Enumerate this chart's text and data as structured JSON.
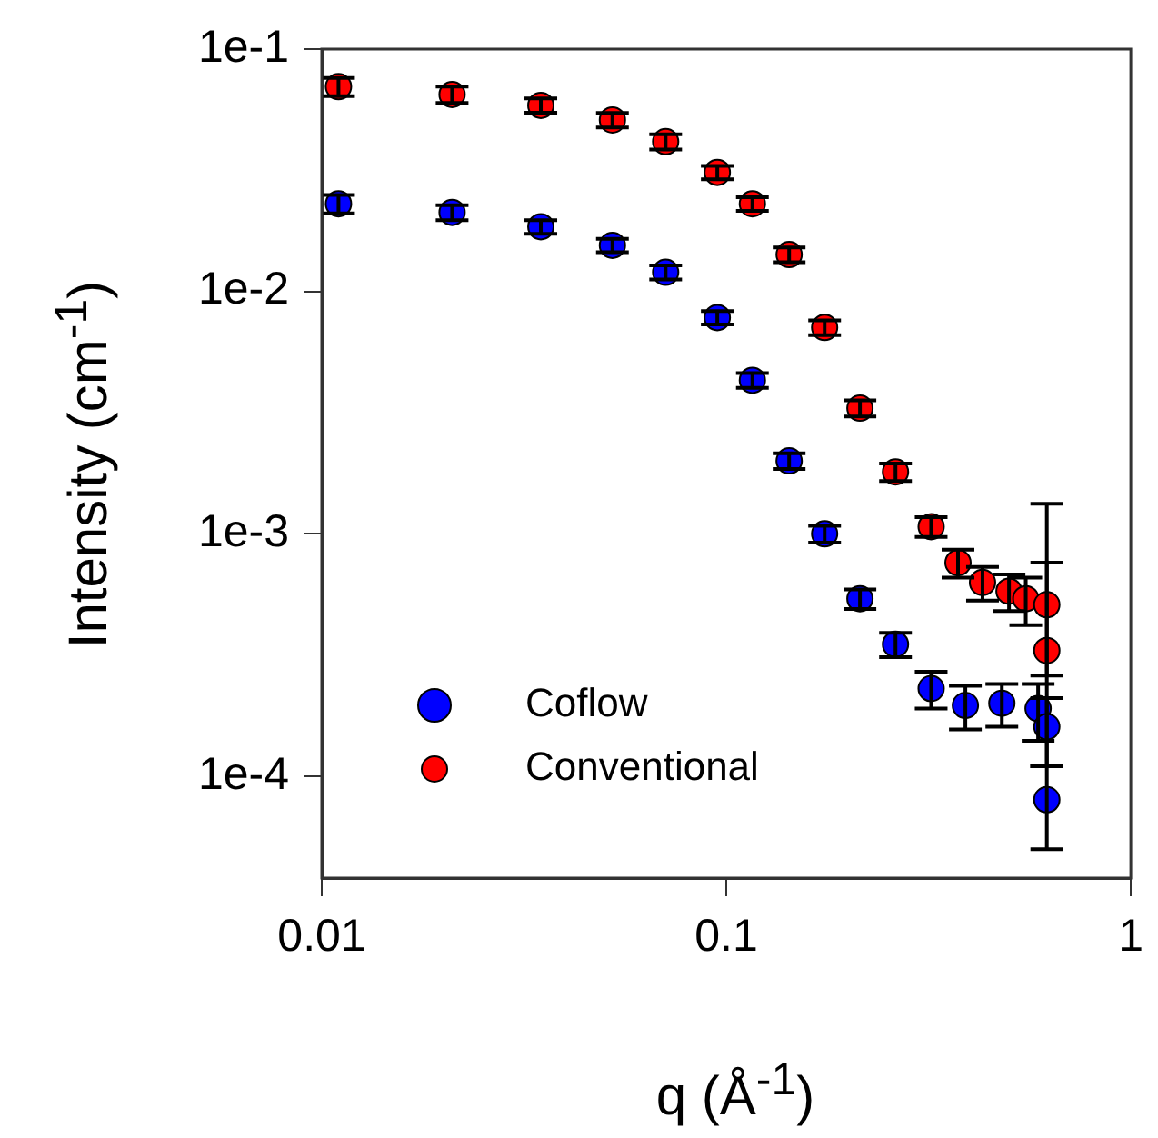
{
  "chart_data": {
    "type": "scatter",
    "xlabel": "q (Å$^{-1}$)",
    "ylabel": "Intensity (cm$^{-1}$)",
    "log": "xy",
    "grid": false,
    "legend": "bottom left",
    "marker": "circle",
    "xlim": [
      0.01,
      1
    ],
    "xticks": [
      0.01,
      0.1,
      1
    ],
    "ylim": [
      3.8e-05,
      0.1
    ],
    "yticks": [
      {
        "value": 0.1,
        "label": "1e-1"
      },
      {
        "value": 0.01,
        "label": "1e-2"
      },
      {
        "value": 0.001,
        "label": "1e-3"
      },
      {
        "value": 0.0001,
        "label": "1e-4"
      }
    ],
    "series": [
      {
        "name": "Coflow",
        "color": "#0000ff",
        "x": [
          0.011,
          0.021,
          0.0348,
          0.0523,
          0.0708,
          0.095,
          0.116,
          0.143,
          0.175,
          0.214,
          0.262,
          0.321,
          0.39,
          0.48,
          0.59,
          0.62,
          0.62
        ],
        "values": [
          0.023,
          0.0212,
          0.0185,
          0.0155,
          0.012,
          0.0078,
          0.0043,
          0.002,
          0.001,
          0.00054,
          0.00035,
          0.00023,
          0.000196,
          0.0002,
          0.00019,
          0.00016,
          8e-05
        ],
        "errors": [
          0.002,
          0.0015,
          0.0012,
          0.001,
          0.0008,
          0.0005,
          0.0003,
          0.00015,
          8e-05,
          5e-05,
          4e-05,
          4e-05,
          4e-05,
          4e-05,
          5e-05,
          5e-05,
          3e-05
        ]
      },
      {
        "name": "Conventional",
        "color": "#ff0000",
        "x": [
          0.011,
          0.021,
          0.0348,
          0.0523,
          0.0708,
          0.095,
          0.116,
          0.143,
          0.175,
          0.214,
          0.262,
          0.321,
          0.374,
          0.43,
          0.5,
          0.55,
          0.62,
          0.62
        ],
        "values": [
          0.07,
          0.065,
          0.0586,
          0.051,
          0.0415,
          0.031,
          0.023,
          0.0142,
          0.0071,
          0.0033,
          0.0018,
          0.00107,
          0.00076,
          0.00063,
          0.00058,
          0.00054,
          0.00051,
          0.00033
        ],
        "errors": [
          0.006,
          0.005,
          0.004,
          0.0035,
          0.003,
          0.002,
          0.0015,
          0.001,
          0.0005,
          0.00025,
          0.00015,
          0.0001,
          0.0001,
          0.0001,
          0.0001,
          0.00012,
          0.00025,
          [
            0.00011,
            0.00133
          ]
        ]
      }
    ]
  }
}
